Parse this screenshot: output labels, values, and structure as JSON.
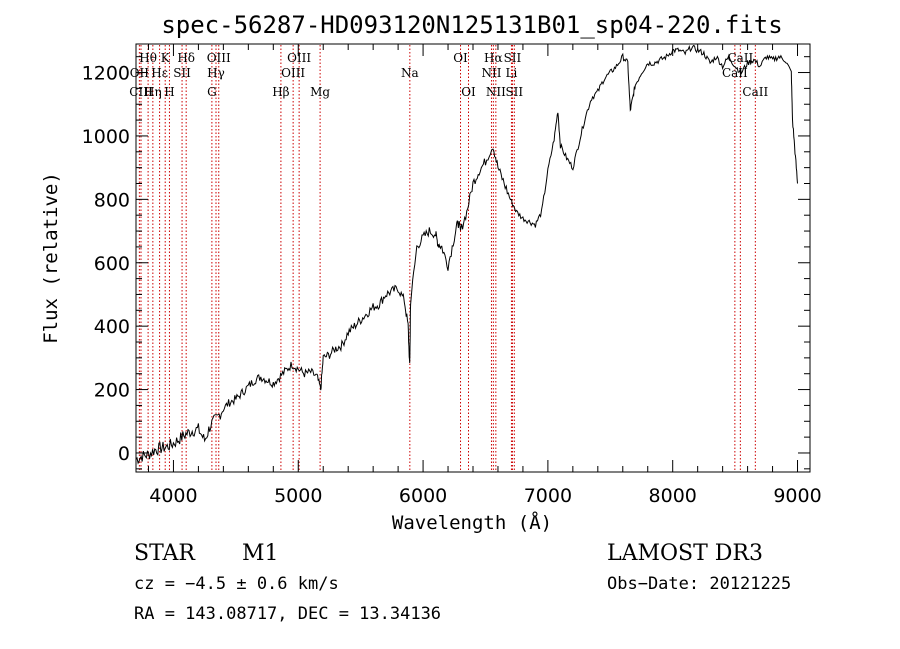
{
  "chart_data": {
    "type": "line",
    "title": "spec-56287-HD093120N125131B01_sp04-220.fits",
    "xlabel": "Wavelength (Å)",
    "ylabel": "Flux (relative)",
    "xlim": [
      3700,
      9100
    ],
    "ylim": [
      -60,
      1290
    ],
    "x_ticks": [
      4000,
      5000,
      6000,
      7000,
      8000,
      9000
    ],
    "x_tick_labels": [
      "4000",
      "5000",
      "6000",
      "7000",
      "8000",
      "9000"
    ],
    "y_ticks": [
      0,
      200,
      400,
      600,
      800,
      1000,
      1200
    ],
    "y_tick_labels": [
      "0",
      "200",
      "400",
      "600",
      "800",
      "1000",
      "1200"
    ],
    "spectrum": {
      "name": "flux",
      "x": [
        3700,
        3750,
        3800,
        3850,
        3900,
        3950,
        4000,
        4050,
        4100,
        4150,
        4200,
        4250,
        4300,
        4350,
        4400,
        4450,
        4500,
        4550,
        4600,
        4650,
        4700,
        4750,
        4800,
        4850,
        4900,
        4950,
        5000,
        5050,
        5100,
        5150,
        5180,
        5200,
        5250,
        5300,
        5350,
        5400,
        5450,
        5500,
        5550,
        5600,
        5650,
        5700,
        5750,
        5800,
        5850,
        5880,
        5893,
        5900,
        5950,
        6000,
        6050,
        6100,
        6120,
        6150,
        6200,
        6250,
        6280,
        6300,
        6350,
        6400,
        6450,
        6500,
        6560,
        6600,
        6650,
        6700,
        6750,
        6800,
        6850,
        6900,
        6950,
        7000,
        7050,
        7080,
        7100,
        7150,
        7200,
        7250,
        7300,
        7350,
        7400,
        7450,
        7500,
        7550,
        7600,
        7640,
        7660,
        7680,
        7700,
        7750,
        7800,
        7850,
        7900,
        7950,
        8000,
        8050,
        8100,
        8150,
        8200,
        8250,
        8300,
        8350,
        8400,
        8450,
        8500,
        8550,
        8600,
        8650,
        8700,
        8750,
        8800,
        8850,
        8900,
        8950,
        8960,
        8980,
        9000
      ],
      "y": [
        -20,
        -10,
        -5,
        10,
        15,
        20,
        30,
        45,
        60,
        70,
        75,
        40,
        90,
        110,
        140,
        160,
        170,
        190,
        210,
        230,
        240,
        230,
        220,
        240,
        260,
        280,
        265,
        250,
        255,
        240,
        200,
        300,
        310,
        330,
        340,
        380,
        400,
        420,
        440,
        460,
        470,
        500,
        510,
        520,
        480,
        400,
        270,
        480,
        650,
        680,
        700,
        690,
        660,
        650,
        590,
        680,
        730,
        700,
        760,
        850,
        890,
        920,
        970,
        900,
        850,
        800,
        760,
        740,
        730,
        720,
        760,
        890,
        990,
        1080,
        970,
        930,
        900,
        980,
        1060,
        1120,
        1140,
        1180,
        1200,
        1220,
        1250,
        1230,
        1080,
        1120,
        1160,
        1200,
        1230,
        1230,
        1240,
        1250,
        1270,
        1270,
        1260,
        1280,
        1270,
        1260,
        1230,
        1250,
        1220,
        1250,
        1220,
        1200,
        1230,
        1240,
        1220,
        1250,
        1240,
        1250,
        1240,
        1200,
        1050,
        950,
        850
      ]
    },
    "spectral_lines": [
      {
        "label": "Hθ",
        "wavelength": 3797,
        "row": 1
      },
      {
        "label": "OII",
        "wavelength": 3727,
        "row": 2
      },
      {
        "label": "CIII",
        "wavelength": 3740,
        "row": 3
      },
      {
        "label": "K",
        "wavelength": 3934,
        "row": 1
      },
      {
        "label": "Hε",
        "wavelength": 3889,
        "row": 2
      },
      {
        "label": "Hη",
        "wavelength": 3835,
        "row": 3
      },
      {
        "label": "Hδ",
        "wavelength": 4102,
        "row": 1
      },
      {
        "label": "SII",
        "wavelength": 4069,
        "row": 2
      },
      {
        "label": "H",
        "wavelength": 3968,
        "row": 3
      },
      {
        "label": "OIII",
        "wavelength": 4363,
        "row": 1
      },
      {
        "label": "Hγ",
        "wavelength": 4341,
        "row": 2
      },
      {
        "label": "G",
        "wavelength": 4308,
        "row": 3
      },
      {
        "label": "Hβ",
        "wavelength": 4861,
        "row": 3
      },
      {
        "label": "OIII",
        "wavelength": 5007,
        "row": 1
      },
      {
        "label": "OIII",
        "wavelength": 4959,
        "row": 2
      },
      {
        "label": "Mg",
        "wavelength": 5175,
        "row": 3
      },
      {
        "label": "Na",
        "wavelength": 5894,
        "row": 2
      },
      {
        "label": "OI",
        "wavelength": 6300,
        "row": 1
      },
      {
        "label": "OI",
        "wavelength": 6364,
        "row": 3
      },
      {
        "label": "Hα",
        "wavelength": 6563,
        "row": 1
      },
      {
        "label": "NII",
        "wavelength": 6548,
        "row": 2
      },
      {
        "label": "NII",
        "wavelength": 6583,
        "row": 3
      },
      {
        "label": "SII",
        "wavelength": 6716,
        "row": 1
      },
      {
        "label": "Li",
        "wavelength": 6708,
        "row": 2
      },
      {
        "label": "SII",
        "wavelength": 6731,
        "row": 3
      },
      {
        "label": "CaII",
        "wavelength": 8542,
        "row": 1
      },
      {
        "label": "CaII",
        "wavelength": 8498,
        "row": 2
      },
      {
        "label": "CaII",
        "wavelength": 8662,
        "row": 3
      }
    ]
  },
  "info": {
    "object_class": "STAR",
    "subclass": "M1",
    "survey": "LAMOST DR3",
    "cz_line": "cz = −4.5 ± 0.6 km/s",
    "obs_date": "Obs−Date: 20121225",
    "coords_line": "RA = 143.08717, DEC =  13.34136"
  },
  "colors": {
    "line_marker": "#cc0000",
    "spectrum": "#000000",
    "axes": "#000000"
  }
}
